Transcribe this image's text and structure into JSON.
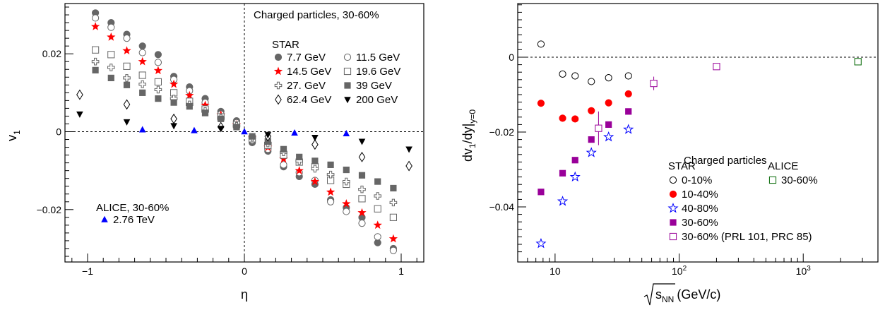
{
  "chart_data": [
    {
      "type": "scatter",
      "xlabel": "η",
      "ylabel": "v",
      "ylabel_sub": "1",
      "xlim": [
        -1.15,
        1.15
      ],
      "ylim": [
        -0.034,
        0.033
      ],
      "x_ticks": [
        -1,
        0,
        1
      ],
      "x_tick_labels": [
        "−1",
        "0",
        "1"
      ],
      "y_ticks": [
        -0.02,
        0,
        0.02
      ],
      "y_tick_labels": [
        "−0.02",
        "0",
        "0.02"
      ],
      "reference_lines": {
        "y": 0,
        "x": 0,
        "style": "dashed"
      },
      "annotations": {
        "title": "Charged particles, 30-60%",
        "star_label": "STAR",
        "alice_label": "ALICE, 30-60%"
      },
      "legend": [
        {
          "name": "7.7 GeV",
          "marker": "circle-filled",
          "color": "#666666"
        },
        {
          "name": "11.5 GeV",
          "marker": "circle-open",
          "color": "#666666"
        },
        {
          "name": "14.5 GeV",
          "marker": "star-filled",
          "color": "#ff0000"
        },
        {
          "name": "19.6 GeV",
          "marker": "square-open",
          "color": "#666666"
        },
        {
          "name": "27. GeV",
          "marker": "cross-open",
          "color": "#666666"
        },
        {
          "name": "39 GeV",
          "marker": "square-filled",
          "color": "#666666"
        },
        {
          "name": "62.4 GeV",
          "marker": "diamond-open",
          "color": "#000000"
        },
        {
          "name": "200 GeV",
          "marker": "triangle-down-filled",
          "color": "#000000"
        },
        {
          "name": "2.76 TeV",
          "marker": "triangle-up-filled",
          "color": "#0000ff"
        }
      ],
      "series": [
        {
          "name": "7.7 GeV",
          "marker": "circle-filled",
          "color": "#666666",
          "x": [
            -0.95,
            -0.85,
            -0.75,
            -0.65,
            -0.55,
            -0.45,
            -0.35,
            -0.25,
            -0.15,
            -0.05,
            0.05,
            0.15,
            0.25,
            0.35,
            0.45,
            0.55,
            0.65,
            0.75,
            0.85,
            0.95
          ],
          "y": [
            0.0305,
            0.028,
            0.025,
            0.022,
            0.0198,
            0.0142,
            0.0115,
            0.0085,
            0.0052,
            0.0028,
            -0.0028,
            -0.005,
            -0.009,
            -0.0115,
            -0.0135,
            -0.0175,
            -0.0195,
            -0.022,
            -0.0285,
            -0.03
          ]
        },
        {
          "name": "11.5 GeV",
          "marker": "circle-open",
          "color": "#666666",
          "x": [
            -0.95,
            -0.85,
            -0.75,
            -0.65,
            -0.55,
            -0.45,
            -0.35,
            -0.25,
            -0.15,
            -0.05,
            0.05,
            0.15,
            0.25,
            0.35,
            0.45,
            0.55,
            0.65,
            0.75,
            0.85,
            0.95
          ],
          "y": [
            0.0292,
            0.0268,
            0.024,
            0.0203,
            0.0178,
            0.0134,
            0.0105,
            0.0075,
            0.0045,
            0.0023,
            -0.0022,
            -0.0045,
            -0.0085,
            -0.0105,
            -0.0125,
            -0.018,
            -0.0205,
            -0.0235,
            -0.027,
            -0.0305
          ]
        },
        {
          "name": "14.5 GeV",
          "marker": "star-filled",
          "color": "#ff0000",
          "x": [
            -0.95,
            -0.85,
            -0.75,
            -0.65,
            -0.55,
            -0.45,
            -0.35,
            -0.25,
            -0.15,
            -0.05,
            0.05,
            0.15,
            0.25,
            0.35,
            0.45,
            0.55,
            0.65,
            0.75,
            0.85,
            0.95
          ],
          "y": [
            0.027,
            0.0243,
            0.0208,
            0.018,
            0.0157,
            0.0122,
            0.0093,
            0.0068,
            0.0043,
            0.0018,
            -0.0015,
            -0.004,
            -0.007,
            -0.01,
            -0.0128,
            -0.0155,
            -0.0185,
            -0.0208,
            -0.024,
            -0.0275
          ]
        },
        {
          "name": "19.6 GeV",
          "marker": "square-open",
          "color": "#666666",
          "x": [
            -0.95,
            -0.85,
            -0.75,
            -0.65,
            -0.55,
            -0.45,
            -0.35,
            -0.25,
            -0.15,
            -0.05,
            0.05,
            0.15,
            0.25,
            0.35,
            0.45,
            0.55,
            0.65,
            0.75,
            0.85,
            0.95
          ],
          "y": [
            0.021,
            0.0198,
            0.0168,
            0.0145,
            0.0128,
            0.01,
            0.0078,
            0.0058,
            0.0038,
            0.0018,
            -0.0018,
            -0.0035,
            -0.006,
            -0.0078,
            -0.009,
            -0.0125,
            -0.0135,
            -0.0172,
            -0.0198,
            -0.022
          ]
        },
        {
          "name": "27. GeV",
          "marker": "cross-open",
          "color": "#666666",
          "x": [
            -0.95,
            -0.85,
            -0.75,
            -0.65,
            -0.55,
            -0.45,
            -0.35,
            -0.25,
            -0.15,
            -0.05,
            0.05,
            0.15,
            0.25,
            0.35,
            0.45,
            0.55,
            0.65,
            0.75,
            0.85,
            0.95
          ],
          "y": [
            0.018,
            0.0165,
            0.0138,
            0.0122,
            0.0108,
            0.0085,
            0.007,
            0.0053,
            0.0035,
            0.0015,
            -0.0015,
            -0.003,
            -0.0053,
            -0.0075,
            -0.0095,
            -0.011,
            -0.0128,
            -0.0148,
            -0.0165,
            -0.0182
          ]
        },
        {
          "name": "39 GeV",
          "marker": "square-filled",
          "color": "#666666",
          "x": [
            -0.95,
            -0.85,
            -0.75,
            -0.65,
            -0.55,
            -0.45,
            -0.35,
            -0.25,
            -0.15,
            -0.05,
            0.05,
            0.15,
            0.25,
            0.35,
            0.45,
            0.55,
            0.65,
            0.75,
            0.85,
            0.95
          ],
          "y": [
            0.0158,
            0.0138,
            0.012,
            0.01,
            0.0085,
            0.0075,
            0.0065,
            0.0048,
            0.0033,
            0.0012,
            -0.0012,
            -0.0025,
            -0.0045,
            -0.0065,
            -0.0075,
            -0.0085,
            -0.0098,
            -0.0112,
            -0.0128,
            -0.0145
          ]
        },
        {
          "name": "62.4 GeV",
          "marker": "diamond-open",
          "color": "#000000",
          "x": [
            -1.05,
            -0.75,
            -0.45,
            -0.15,
            0.15,
            0.45,
            0.75,
            1.05
          ],
          "y": [
            0.0095,
            0.007,
            0.0033,
            0.0012,
            -0.0012,
            -0.0033,
            -0.0065,
            -0.0088
          ]
        },
        {
          "name": "200 GeV",
          "marker": "triangle-down-filled",
          "color": "#000000",
          "x": [
            -1.05,
            -0.75,
            -0.45,
            -0.15,
            0.15,
            0.45,
            0.75,
            1.05
          ],
          "y": [
            0.0045,
            0.0025,
            0.0015,
            0.0008,
            -0.0008,
            -0.0015,
            -0.0025,
            -0.0045
          ]
        },
        {
          "name": "2.76 TeV",
          "marker": "triangle-up-filled",
          "color": "#0000ff",
          "x": [
            -0.65,
            -0.32,
            0,
            0.32,
            0.65
          ],
          "y": [
            0.0005,
            0.0003,
            0,
            -0.0003,
            -0.0005
          ]
        }
      ]
    },
    {
      "type": "scatter",
      "xlabel": "(GeV/c)",
      "xlabel_sqrt": "s",
      "xlabel_sub": "NN",
      "ylabel": "dv",
      "ylabel_sub1": "1",
      "ylabel_mid": "/dy|",
      "ylabel_sub2": "y=0",
      "xscale": "log",
      "xlim": [
        5,
        4000
      ],
      "ylim": [
        -0.0525,
        0.0145
      ],
      "x_ticks": [
        10,
        100,
        1000
      ],
      "x_tick_labels": [
        "10",
        "10",
        "10"
      ],
      "x_tick_exps": [
        "",
        "2",
        "3"
      ],
      "y_ticks": [
        -0.04,
        -0.02,
        0
      ],
      "y_tick_labels": [
        "−0.04",
        "−0.02",
        "0"
      ],
      "reference_lines": {
        "y": 0,
        "style": "dashed"
      },
      "annotations": {
        "title": "Charged particles",
        "star_label": "STAR",
        "alice_label": "ALICE"
      },
      "legend": [
        {
          "name": "0-10%",
          "marker": "circle-open",
          "color": "#000000"
        },
        {
          "name": "10-40%",
          "marker": "circle-filled",
          "color": "#ff0000"
        },
        {
          "name": "40-80%",
          "marker": "star-open",
          "color": "#0000ff"
        },
        {
          "name": "30-60%",
          "marker": "square-filled",
          "color": "#990099"
        },
        {
          "name": "30-60% (PRL 101, PRC 85)",
          "marker": "square-open",
          "color": "#990099"
        },
        {
          "name": "30-60%",
          "marker": "square-open",
          "color": "#006600"
        }
      ],
      "series": [
        {
          "name": "0-10%",
          "marker": "circle-open",
          "color": "#000000",
          "x": [
            7.7,
            11.5,
            14.5,
            19.6,
            27,
            39
          ],
          "y": [
            0.0035,
            -0.0045,
            -0.005,
            -0.0065,
            -0.0055,
            -0.005
          ]
        },
        {
          "name": "10-40%",
          "marker": "circle-filled",
          "color": "#ff0000",
          "x": [
            7.7,
            11.5,
            14.5,
            19.6,
            27,
            39
          ],
          "y": [
            -0.0123,
            -0.0163,
            -0.0165,
            -0.0143,
            -0.0122,
            -0.0098
          ]
        },
        {
          "name": "40-80%",
          "marker": "star-open",
          "color": "#0000ff",
          "x": [
            7.7,
            11.5,
            14.5,
            19.6,
            27,
            39
          ],
          "y": [
            -0.0498,
            -0.0385,
            -0.032,
            -0.0255,
            -0.0213,
            -0.0193
          ]
        },
        {
          "name": "30-60%",
          "marker": "square-filled",
          "color": "#990099",
          "x": [
            7.7,
            11.5,
            14.5,
            19.6,
            27,
            39
          ],
          "y": [
            -0.036,
            -0.031,
            -0.0275,
            -0.022,
            -0.018,
            -0.0145
          ]
        },
        {
          "name": "30-60% (PRL 101, PRC 85)",
          "marker": "square-open",
          "color": "#990099",
          "x": [
            22.4,
            62.4,
            200
          ],
          "y": [
            -0.019,
            -0.007,
            -0.0025
          ],
          "yerr": [
            0.0045,
            0.0018,
            0.0005
          ]
        },
        {
          "name": "30-60%",
          "marker": "square-open",
          "color": "#006600",
          "x": [
            2760
          ],
          "y": [
            -0.0012
          ]
        }
      ]
    }
  ]
}
